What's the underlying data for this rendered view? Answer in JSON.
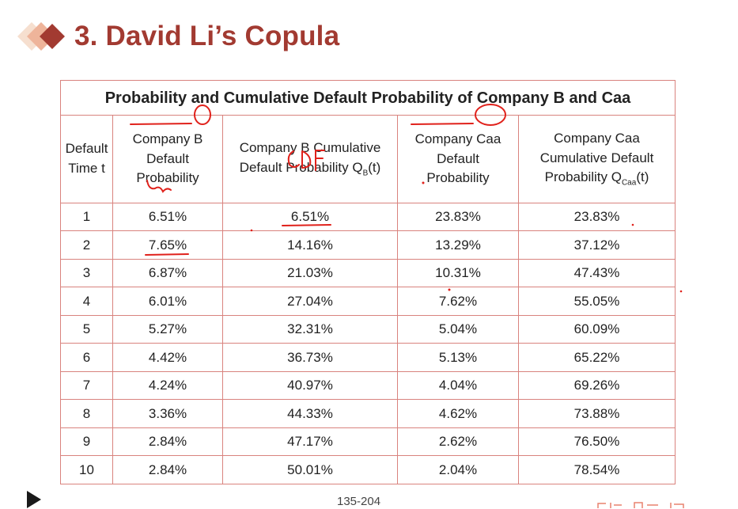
{
  "title": "3. David Li’s Copula",
  "table": {
    "caption": "Probability and Cumulative Default Probability of Company B and Caa",
    "headers": [
      [
        "Default",
        "Time t"
      ],
      [
        "Company B",
        "Default",
        "Probability"
      ],
      [
        "Company B Cumulative",
        "Default Probability Q",
        "B",
        "(t)"
      ],
      [
        "Company Caa",
        "Default",
        "Probability"
      ],
      [
        "Company Caa",
        "Cumulative Default",
        "Probability Q",
        "Caa",
        "(t)"
      ]
    ],
    "rows": [
      [
        "1",
        "6.51%",
        "6.51%",
        "23.83%",
        "23.83%"
      ],
      [
        "2",
        "7.65%",
        "14.16%",
        "13.29%",
        "37.12%"
      ],
      [
        "3",
        "6.87%",
        "21.03%",
        "10.31%",
        "47.43%"
      ],
      [
        "4",
        "6.01%",
        "27.04%",
        "7.62%",
        "55.05%"
      ],
      [
        "5",
        "5.27%",
        "32.31%",
        "5.04%",
        "60.09%"
      ],
      [
        "6",
        "4.42%",
        "36.73%",
        "5.13%",
        "65.22%"
      ],
      [
        "7",
        "4.24%",
        "40.97%",
        "4.04%",
        "69.26%"
      ],
      [
        "8",
        "3.36%",
        "44.33%",
        "4.62%",
        "73.88%"
      ],
      [
        "9",
        "2.84%",
        "47.17%",
        "2.62%",
        "76.50%"
      ],
      [
        "10",
        "2.84%",
        "50.01%",
        "2.04%",
        "78.54%"
      ]
    ]
  },
  "annotation": "CDF",
  "footer": {
    "page_label": "135-204",
    "play_icon": "play-icon"
  },
  "colors": {
    "title": "#a23a31",
    "border": "#d9837e",
    "ink": "#e0211b"
  }
}
